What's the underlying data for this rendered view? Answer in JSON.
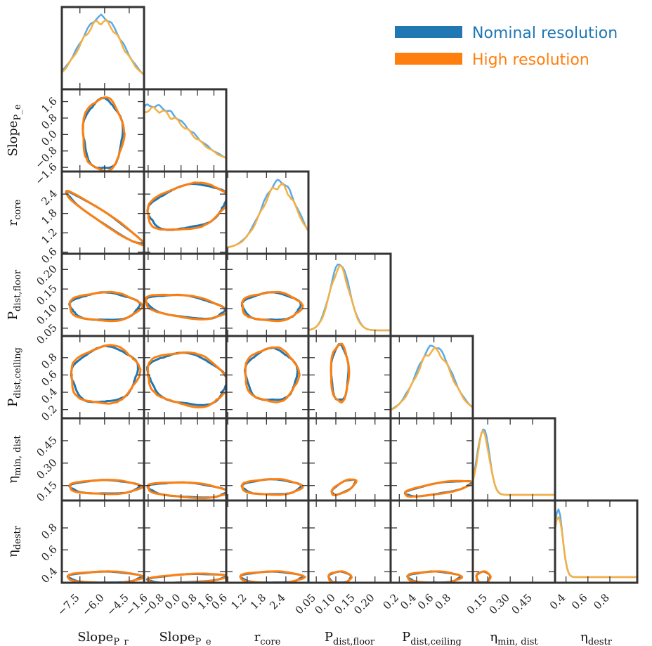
{
  "chart_data": {
    "type": "corner",
    "parameters": [
      {
        "id": "slope_pr",
        "label_main": "Slope",
        "label_sub": "P_r",
        "range": [
          -8.6,
          -3.6
        ],
        "ticks": [
          -7.5,
          -6.0,
          -4.5
        ],
        "tick_labels": [
          "−7.5",
          "−6.0",
          "−4.5"
        ],
        "peak": -6.2,
        "width": 1.3
      },
      {
        "id": "slope_pe",
        "label_main": "Slope",
        "label_sub": "P_e",
        "range": [
          -1.8,
          2.2
        ],
        "ticks": [
          -1.6,
          -0.8,
          0.0,
          0.8,
          1.6
        ],
        "tick_labels": [
          "−1.6",
          "−0.8",
          "0.0",
          "0.8",
          "1.6"
        ],
        "peak": -1.4,
        "width": 1.8
      },
      {
        "id": "r_core",
        "label_main": "r",
        "label_sub": "core",
        "range": [
          0.55,
          3.1
        ],
        "ticks": [
          0.6,
          1.2,
          1.8,
          2.4
        ],
        "tick_labels": [
          "0.6",
          "1.2",
          "1.8",
          "2.4"
        ],
        "peak": 2.2,
        "width": 0.55
      },
      {
        "id": "p_floor",
        "label_main": "P",
        "label_sub": "dist,floor",
        "range": [
          0.03,
          0.24
        ],
        "ticks": [
          0.05,
          0.1,
          0.15,
          0.2
        ],
        "tick_labels": [
          "0.05",
          "0.10",
          "0.15",
          "0.20"
        ],
        "peak": 0.11,
        "width": 0.025
      },
      {
        "id": "p_ceiling",
        "label_main": "P",
        "label_sub": "dist,ceiling",
        "range": [
          0.1,
          1.05
        ],
        "ticks": [
          0.2,
          0.4,
          0.6,
          0.8
        ],
        "tick_labels": [
          "0.2",
          "0.4",
          "0.6",
          "0.8"
        ],
        "peak": 0.6,
        "width": 0.2
      },
      {
        "id": "eta_min",
        "label_main": "η",
        "label_sub": "min, dist",
        "range": [
          0.05,
          0.6
        ],
        "ticks": [
          0.15,
          0.3,
          0.45
        ],
        "tick_labels": [
          "0.15",
          "0.30",
          "0.45"
        ],
        "peak": 0.12,
        "width": 0.04
      },
      {
        "id": "eta_destr",
        "label_main": "η",
        "label_sub": "destr",
        "range": [
          0.3,
          1.05
        ],
        "ticks": [
          0.4,
          0.6,
          0.8
        ],
        "tick_labels": [
          "0.4",
          "0.6",
          "0.8"
        ],
        "peak": 0.33,
        "width": 0.04
      }
    ],
    "series": [
      {
        "name": "Nominal resolution",
        "color": "#1f77b4",
        "marginal_color": "#5aa9e6"
      },
      {
        "name": "High resolution",
        "color": "#ff7f0e",
        "marginal_color": "#f5b041"
      }
    ],
    "legend_position": "top-right",
    "marginal_scale": {
      "slope_pr": 1.0,
      "slope_pe": 0.9,
      "r_core": 1.0,
      "p_floor": 1.0,
      "p_ceiling": 1.0,
      "eta_min": 1.0,
      "eta_destr": 1.0
    },
    "contours": [
      {
        "row": 1,
        "col": 0,
        "cx": -6.1,
        "cy": 0.0,
        "rx": 1.2,
        "ry": 1.7,
        "rho": 0.0,
        "clip": true
      },
      {
        "row": 2,
        "col": 0,
        "cx": -6.0,
        "cy": 1.65,
        "rx": 2.3,
        "ry": 0.8,
        "rho": -0.97
      },
      {
        "row": 2,
        "col": 1,
        "cx": 0.3,
        "cy": 2.0,
        "rx": 1.9,
        "ry": 0.7,
        "rho": 0.3,
        "clip": true
      },
      {
        "row": 3,
        "col": 0,
        "cx": -6.0,
        "cy": 0.105,
        "rx": 2.1,
        "ry": 0.035,
        "rho": 0.0
      },
      {
        "row": 3,
        "col": 1,
        "cx": 0.2,
        "cy": 0.105,
        "rx": 1.9,
        "ry": 0.03,
        "rho": -0.4,
        "clip": true
      },
      {
        "row": 3,
        "col": 2,
        "cx": 1.95,
        "cy": 0.105,
        "rx": 0.9,
        "ry": 0.035,
        "rho": 0.0
      },
      {
        "row": 4,
        "col": 0,
        "cx": -6.0,
        "cy": 0.6,
        "rx": 2.0,
        "ry": 0.32,
        "rho": 0.1
      },
      {
        "row": 4,
        "col": 1,
        "cx": 0.3,
        "cy": 0.55,
        "rx": 1.9,
        "ry": 0.3,
        "rho": -0.2,
        "clip": true
      },
      {
        "row": 4,
        "col": 2,
        "cx": 1.95,
        "cy": 0.6,
        "rx": 0.8,
        "ry": 0.3,
        "rho": 0.0
      },
      {
        "row": 4,
        "col": 3,
        "cx": 0.11,
        "cy": 0.62,
        "rx": 0.022,
        "ry": 0.32,
        "rho": 0.0
      },
      {
        "row": 5,
        "col": 0,
        "cx": -6.0,
        "cy": 0.14,
        "rx": 2.1,
        "ry": 0.045,
        "rho": 0.0
      },
      {
        "row": 5,
        "col": 1,
        "cx": 0.3,
        "cy": 0.12,
        "rx": 1.9,
        "ry": 0.05,
        "rho": -0.3,
        "clip": true
      },
      {
        "row": 5,
        "col": 2,
        "cx": 1.95,
        "cy": 0.14,
        "rx": 0.9,
        "ry": 0.05,
        "rho": 0.0
      },
      {
        "row": 5,
        "col": 3,
        "cx": 0.12,
        "cy": 0.14,
        "rx": 0.03,
        "ry": 0.05,
        "rho": 0.7
      },
      {
        "row": 5,
        "col": 4,
        "cx": 0.65,
        "cy": 0.13,
        "rx": 0.38,
        "ry": 0.05,
        "rho": 0.7,
        "clip": true
      },
      {
        "row": 6,
        "col": 0,
        "cx": -6.0,
        "cy": 0.35,
        "rx": 2.2,
        "ry": 0.05,
        "rho": 0.0
      },
      {
        "row": 6,
        "col": 1,
        "cx": 0.3,
        "cy": 0.34,
        "rx": 1.9,
        "ry": 0.04,
        "rho": 0.4,
        "clip": true
      },
      {
        "row": 6,
        "col": 2,
        "cx": 1.95,
        "cy": 0.35,
        "rx": 0.95,
        "ry": 0.05,
        "rho": 0.0
      },
      {
        "row": 6,
        "col": 3,
        "cx": 0.11,
        "cy": 0.35,
        "rx": 0.028,
        "ry": 0.05,
        "rho": 0.0
      },
      {
        "row": 6,
        "col": 4,
        "cx": 0.6,
        "cy": 0.35,
        "rx": 0.3,
        "ry": 0.05,
        "rho": 0.0
      },
      {
        "row": 6,
        "col": 5,
        "cx": 0.12,
        "cy": 0.35,
        "rx": 0.045,
        "ry": 0.05,
        "rho": 0.0
      }
    ]
  }
}
